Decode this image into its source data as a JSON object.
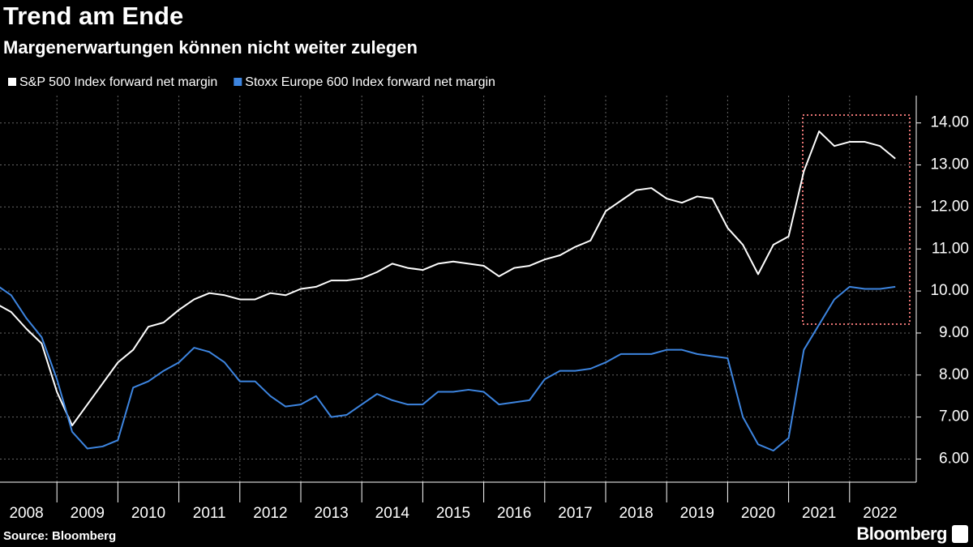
{
  "chart_data": {
    "type": "line",
    "title": "Trend am Ende",
    "subtitle": "Margenerwartungen können nicht weiter zulegen",
    "source": "Source: Bloomberg",
    "logo": "Bloomberg",
    "categories": [
      "2008",
      "2009",
      "2010",
      "2011",
      "2012",
      "2013",
      "2014",
      "2015",
      "2016",
      "2017",
      "2018",
      "2019",
      "2020",
      "2021",
      "2022"
    ],
    "x": [
      2008,
      2008.25,
      2008.5,
      2008.75,
      2009,
      2009.25,
      2009.5,
      2009.75,
      2010,
      2010.25,
      2010.5,
      2010.75,
      2011,
      2011.25,
      2011.5,
      2011.75,
      2012,
      2012.25,
      2012.5,
      2012.75,
      2013,
      2013.25,
      2013.5,
      2013.75,
      2014,
      2014.25,
      2014.5,
      2014.75,
      2015,
      2015.25,
      2015.5,
      2015.75,
      2016,
      2016.25,
      2016.5,
      2016.75,
      2017,
      2017.25,
      2017.5,
      2017.75,
      2018,
      2018.25,
      2018.5,
      2018.75,
      2019,
      2019.25,
      2019.5,
      2019.75,
      2020,
      2020.25,
      2020.5,
      2020.75,
      2021,
      2021.25,
      2021.5,
      2021.75,
      2022,
      2022.25,
      2022.5,
      2022.75
    ],
    "xlim": [
      2008,
      2023
    ],
    "xticks": [
      2009,
      2010,
      2011,
      2012,
      2013,
      2014,
      2015,
      2016,
      2017,
      2018,
      2019,
      2020,
      2021,
      2022
    ],
    "ylim": [
      5.45,
      14.65
    ],
    "yticks": [
      {
        "value": 6,
        "label": "6.00"
      },
      {
        "value": 7,
        "label": "7.00"
      },
      {
        "value": 8,
        "label": "8.00"
      },
      {
        "value": 9,
        "label": "9.00"
      },
      {
        "value": 10,
        "label": "10.00"
      },
      {
        "value": 11,
        "label": "11.00"
      },
      {
        "value": 12,
        "label": "12.00"
      },
      {
        "value": 13,
        "label": "13.00"
      },
      {
        "value": 14,
        "label": "14.00"
      }
    ],
    "grid": true,
    "series": [
      {
        "name": "S&P 500 Index forward net margin",
        "color": "#ffffff",
        "values": [
          9.7,
          9.5,
          9.1,
          8.75,
          7.6,
          6.8,
          7.3,
          7.8,
          8.3,
          8.6,
          9.15,
          9.25,
          9.55,
          9.8,
          9.95,
          9.9,
          9.8,
          9.8,
          9.95,
          9.9,
          10.05,
          10.1,
          10.25,
          10.25,
          10.3,
          10.45,
          10.65,
          10.55,
          10.5,
          10.65,
          10.7,
          10.65,
          10.6,
          10.35,
          10.55,
          10.6,
          10.75,
          10.85,
          11.05,
          11.2,
          11.9,
          12.15,
          12.4,
          12.45,
          12.2,
          12.1,
          12.25,
          12.2,
          11.5,
          11.1,
          10.4,
          11.1,
          11.3,
          12.85,
          13.8,
          13.45,
          13.55,
          13.55,
          13.45,
          13.15
        ]
      },
      {
        "name": "Stoxx Europe 600 Index forward net margin",
        "color": "#3d85e0",
        "values": [
          10.15,
          9.9,
          9.35,
          8.9,
          7.9,
          6.65,
          6.25,
          6.3,
          6.45,
          7.7,
          7.85,
          8.1,
          8.3,
          8.65,
          8.55,
          8.3,
          7.85,
          7.85,
          7.5,
          7.25,
          7.3,
          7.5,
          7.0,
          7.05,
          7.3,
          7.55,
          7.4,
          7.3,
          7.3,
          7.6,
          7.6,
          7.65,
          7.6,
          7.3,
          7.35,
          7.4,
          7.9,
          8.1,
          8.1,
          8.15,
          8.3,
          8.5,
          8.5,
          8.5,
          8.6,
          8.6,
          8.5,
          8.45,
          8.4,
          7.0,
          6.35,
          6.2,
          6.5,
          8.6,
          9.2,
          9.8,
          10.1,
          10.05,
          10.05,
          10.1
        ]
      }
    ]
  }
}
